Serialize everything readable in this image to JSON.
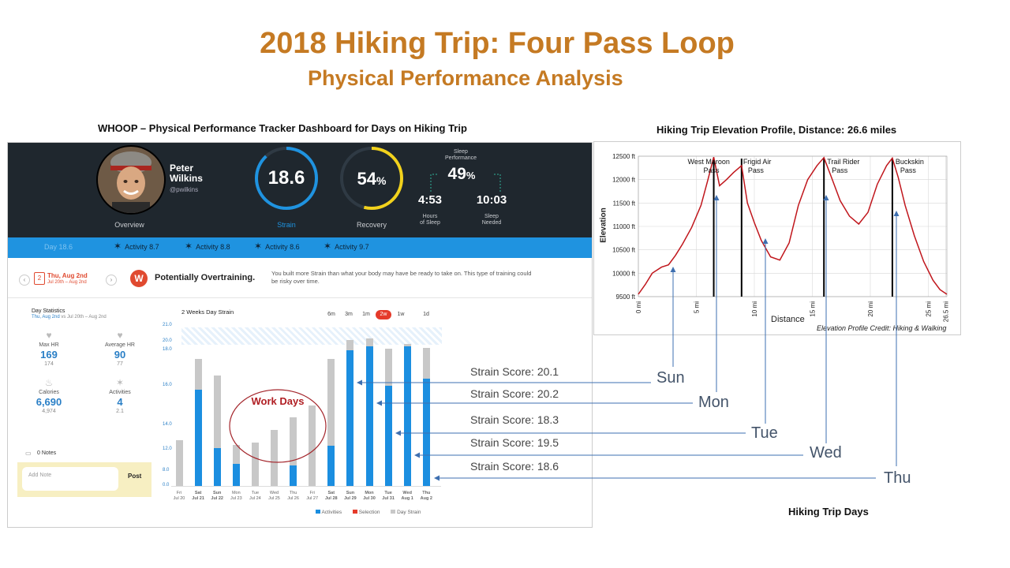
{
  "slide": {
    "title": "2018 Hiking Trip: Four Pass Loop",
    "subtitle": "Physical Performance Analysis",
    "left_caption": "WHOOP – Physical Performance Tracker Dashboard for Days on Hiking Trip",
    "right_caption": "Hiking Trip Elevation Profile, Distance: 26.6 miles",
    "bottom_caption": "Hiking Trip Days",
    "elevation_credit": "Elevation Profile Credit: Hiking & Walking",
    "work_days_label": "Work Days"
  },
  "dashboard": {
    "profile": {
      "name": "Peter Wilkins",
      "first": "Peter",
      "last": "Wilkins",
      "handle": "@pwilkins",
      "overview_label": "Overview"
    },
    "strain": {
      "value": "18.6",
      "label": "Strain",
      "fraction": 0.88
    },
    "recovery": {
      "value": "54",
      "unit": "%",
      "label": "Recovery",
      "fraction": 0.54
    },
    "sleep": {
      "title1": "Sleep",
      "title2": "Performance",
      "performance": "49",
      "unit": "%",
      "hours_of_sleep": "4:53",
      "hours_label1": "Hours",
      "hours_label2": "of Sleep",
      "sleep_needed": "10:03",
      "needed_label1": "Sleep",
      "needed_label2": "Needed"
    },
    "activity_bar": {
      "day_label": "Day 18.6",
      "activities": [
        "Activity 8.7",
        "Activity 8.8",
        "Activity 8.6",
        "Activity 9.7"
      ]
    },
    "alert": {
      "date": "Thu, Aug 2nd",
      "date_range": "Jul 20th – Aug 2nd",
      "calendar_day": "2",
      "title": "Potentially Overtraining.",
      "body_line1": "You built more Strain than what your body may have be ready to take on. This type of training could",
      "body_line2": "be risky over time."
    },
    "day_statistics": {
      "title": "Day Statistics",
      "subtitle_date": "Thu, Aug 2nd",
      "subtitle_rest": " vs Jul 20th – Aug 2nd",
      "max_hr": {
        "label": "Max HR",
        "value": "169",
        "avg": "174"
      },
      "avg_hr": {
        "label": "Average HR",
        "value": "90",
        "avg": "77"
      },
      "calories": {
        "label": "Calories",
        "value": "6,690",
        "avg": "4,974"
      },
      "activities": {
        "label": "Activities",
        "value": "4",
        "avg": "2.1"
      },
      "notes_label": "0 Notes",
      "add_note_placeholder": "Add Note",
      "post_label": "Post"
    },
    "range_buttons": [
      "6m",
      "3m",
      "1m",
      "2w",
      "1w",
      "1d"
    ],
    "active_range": "2w",
    "legend": [
      "Activities",
      "Selection",
      "Day Strain"
    ]
  },
  "chart_data": [
    {
      "type": "bar",
      "title": "2 Weeks Day Strain",
      "categories": [
        "Fri Jul 20",
        "Sat Jul 21",
        "Sun Jul 22",
        "Mon Jul 23",
        "Tue Jul 24",
        "Wed Jul 25",
        "Thu Jul 26",
        "Fri Jul 27",
        "Sat Jul 28",
        "Sun Jul 29",
        "Mon Jul 30",
        "Tue Jul 31",
        "Wed Aug 1",
        "Thu Aug 2"
      ],
      "y_ticks": [
        "0.0",
        "8.0",
        "12.0",
        "14.0",
        "16.0",
        "18.0",
        "20.0",
        "21.0"
      ],
      "series": [
        {
          "name": "Day Strain",
          "values": [
            12.8,
            17.5,
            16.6,
            12.4,
            12.6,
            13.6,
            14.4,
            15.0,
            17.5,
            20.1,
            20.2,
            18.3,
            19.5,
            18.6
          ]
        },
        {
          "name": "Activities",
          "values": [
            0,
            15.8,
            12.1,
            9.3,
            0,
            0,
            9.0,
            0,
            12.3,
            18.0,
            19.0,
            16.0,
            19.0,
            16.4
          ]
        }
      ],
      "strain_scores": [
        "Strain Score: 20.1",
        "Strain Score: 20.2",
        "Strain Score: 18.3",
        "Strain Score: 19.5",
        "Strain Score: 18.6"
      ],
      "day_callouts": [
        "Sun",
        "Mon",
        "Tue",
        "Wed",
        "Thu"
      ],
      "colors": {
        "activities": "#1b8ee0",
        "day_strain": "#c8c8c8",
        "selection": "#e53a2a"
      }
    },
    {
      "type": "line",
      "title": "",
      "xlabel": "Distance",
      "ylabel": "Elevation",
      "x_ticks": [
        "0 mi",
        "5 mi",
        "10 mi",
        "15 mi",
        "20 mi",
        "25 mi",
        "26.5 mi"
      ],
      "y_ticks": [
        "9500 ft",
        "10000 ft",
        "10500 ft",
        "11000 ft",
        "11500 ft",
        "12000 ft",
        "12500 ft"
      ],
      "xlim": [
        0,
        26.6
      ],
      "ylim": [
        9500,
        12500
      ],
      "passes": [
        "West Maroon Pass",
        "Frigid Air Pass",
        "Trail Rider Pass",
        "Buckskin Pass"
      ],
      "pass_lines_x": [
        6.5,
        8.9,
        16.0,
        21.9
      ],
      "x": [
        0,
        0.6,
        1.2,
        2.0,
        2.6,
        3.2,
        3.8,
        4.6,
        5.4,
        6.0,
        6.5,
        7.0,
        7.6,
        8.2,
        8.9,
        9.4,
        10.0,
        10.6,
        11.4,
        12.2,
        13.0,
        13.8,
        14.6,
        15.4,
        16.0,
        16.6,
        17.4,
        18.2,
        19.0,
        19.8,
        20.6,
        21.4,
        21.9,
        22.4,
        23.0,
        23.8,
        24.6,
        25.4,
        26.0,
        26.6
      ],
      "y": [
        9550,
        9760,
        10000,
        10130,
        10180,
        10380,
        10620,
        10980,
        11450,
        12000,
        12480,
        11870,
        12000,
        12150,
        12300,
        11500,
        11080,
        10700,
        10350,
        10280,
        10650,
        11450,
        12000,
        12300,
        12470,
        12080,
        11550,
        11220,
        11050,
        11300,
        11900,
        12300,
        12460,
        12050,
        11450,
        10800,
        10250,
        9850,
        9650,
        9550
      ],
      "colors": {
        "line": "#c0161c",
        "pass_line": "#000000"
      }
    }
  ]
}
